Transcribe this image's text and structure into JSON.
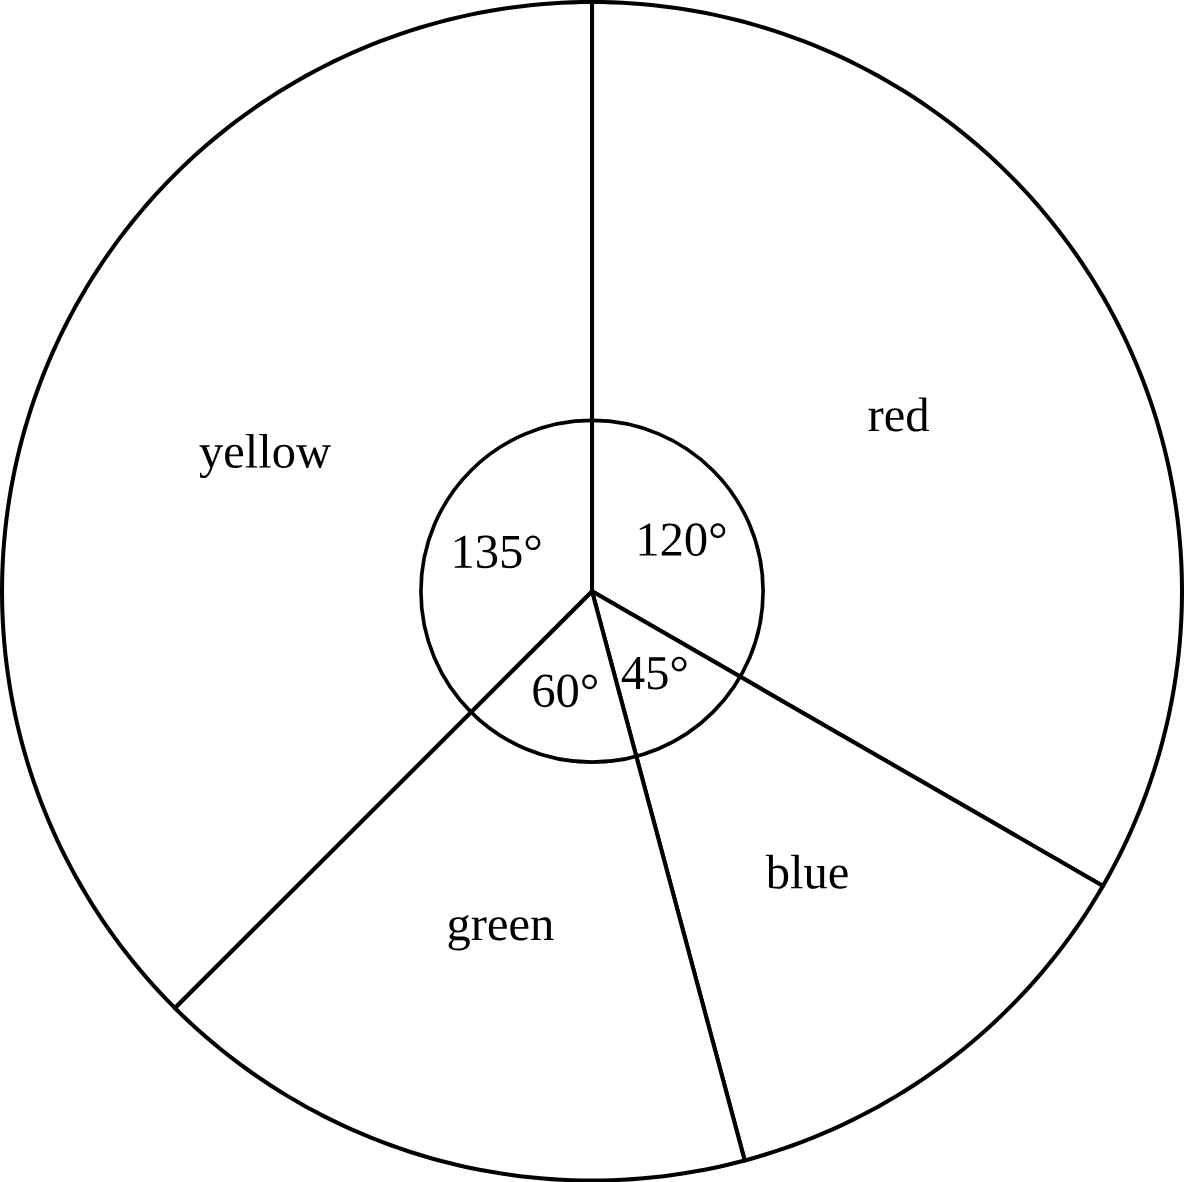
{
  "chart_data": {
    "type": "pie",
    "categories": [
      "red",
      "blue",
      "green",
      "yellow"
    ],
    "values": [
      120,
      45,
      60,
      135
    ],
    "value_labels": [
      "120°",
      "45°",
      "60°",
      "135°"
    ],
    "colors": [
      "#ffffff",
      "#ffffff",
      "#ffffff",
      "#ffffff"
    ]
  }
}
